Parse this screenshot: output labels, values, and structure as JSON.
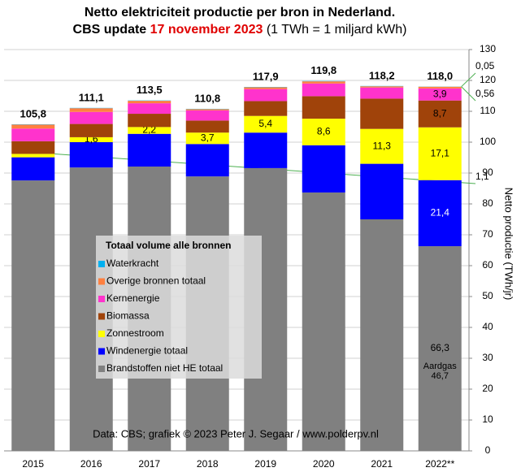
{
  "chart_data": {
    "type": "stacked_bar",
    "title": "Netto elektriciteit  productie per bron in Nederland.",
    "subtitle": {
      "prefix": "CBS update ",
      "date": "17 november 2023",
      "suffix": " (1 TWh = 1 miljard kWh)"
    },
    "y_axis_label": "Netto productie (TWh/jr)",
    "legend_title": "Totaal volume alle bronnen",
    "source": "Data: CBS;  grafiek © 2023 Peter J. Segaar / www.polderpv.nl",
    "categories": [
      "2015",
      "2016",
      "2017",
      "2018",
      "2019",
      "2020",
      "2021",
      "2022**"
    ],
    "series": [
      {
        "name": "Brandstoffen niet HE totaal",
        "color": "#808080",
        "values": [
          87.6,
          91.8,
          92.1,
          88.9,
          91.6,
          83.7,
          75.0,
          66.3
        ],
        "value_labels": [
          null,
          null,
          null,
          null,
          null,
          null,
          null,
          "66,3"
        ]
      },
      {
        "name": "Windenergie totaal",
        "color": "#0000ff",
        "values": [
          7.5,
          8.2,
          10.6,
          10.5,
          11.5,
          15.3,
          18.0,
          21.4
        ],
        "value_labels": [
          null,
          null,
          null,
          null,
          null,
          null,
          null,
          "21,4"
        ]
      },
      {
        "name": "Zonnestroom",
        "color": "#ffff00",
        "values": [
          1.1,
          1.6,
          2.2,
          3.7,
          5.4,
          8.6,
          11.3,
          17.1
        ],
        "value_labels": [
          "1,1",
          "1,6",
          "2,2",
          "3,7",
          "5,4",
          "8,6",
          "11,3",
          "17,1"
        ]
      },
      {
        "name": "Biomassa",
        "color": "#a0430a",
        "values": [
          4.1,
          4.3,
          4.3,
          3.9,
          4.8,
          7.3,
          9.8,
          8.7
        ],
        "value_labels": [
          null,
          null,
          null,
          null,
          null,
          null,
          null,
          "8,7"
        ]
      },
      {
        "name": "Kernenergie",
        "color": "#ff33cc",
        "values": [
          4.1,
          3.9,
          3.4,
          3.3,
          3.9,
          4.1,
          3.6,
          3.9
        ],
        "value_labels": [
          null,
          null,
          null,
          null,
          null,
          null,
          null,
          "3,9"
        ]
      },
      {
        "name": "Overige bronnen totaal",
        "color": "#ff8040",
        "values": [
          1.3,
          1.2,
          0.8,
          0.4,
          0.6,
          0.7,
          0.4,
          0.56
        ],
        "value_labels": [
          null,
          null,
          null,
          null,
          null,
          null,
          null,
          "0,56"
        ]
      },
      {
        "name": "Waterkracht",
        "color": "#00b0f0",
        "values": [
          0.1,
          0.1,
          0.1,
          0.1,
          0.1,
          0.1,
          0.1,
          0.05
        ],
        "value_labels": [
          null,
          null,
          null,
          null,
          null,
          null,
          null,
          "0,05"
        ]
      }
    ],
    "totals": [
      105.8,
      111.1,
      113.5,
      110.8,
      117.9,
      119.8,
      118.2,
      118.0
    ],
    "total_labels": [
      "105,8",
      "111,1",
      "113,5",
      "110,8",
      "117,9",
      "119,8",
      "118,2",
      "118,0"
    ],
    "annotation": {
      "text": "Aardgas",
      "value": 46.7,
      "label": "46,7"
    },
    "ylim": [
      0,
      130
    ],
    "yticks": [
      0,
      10,
      20,
      30,
      40,
      50,
      60,
      70,
      80,
      90,
      100,
      110,
      120,
      130
    ],
    "grid": true
  }
}
